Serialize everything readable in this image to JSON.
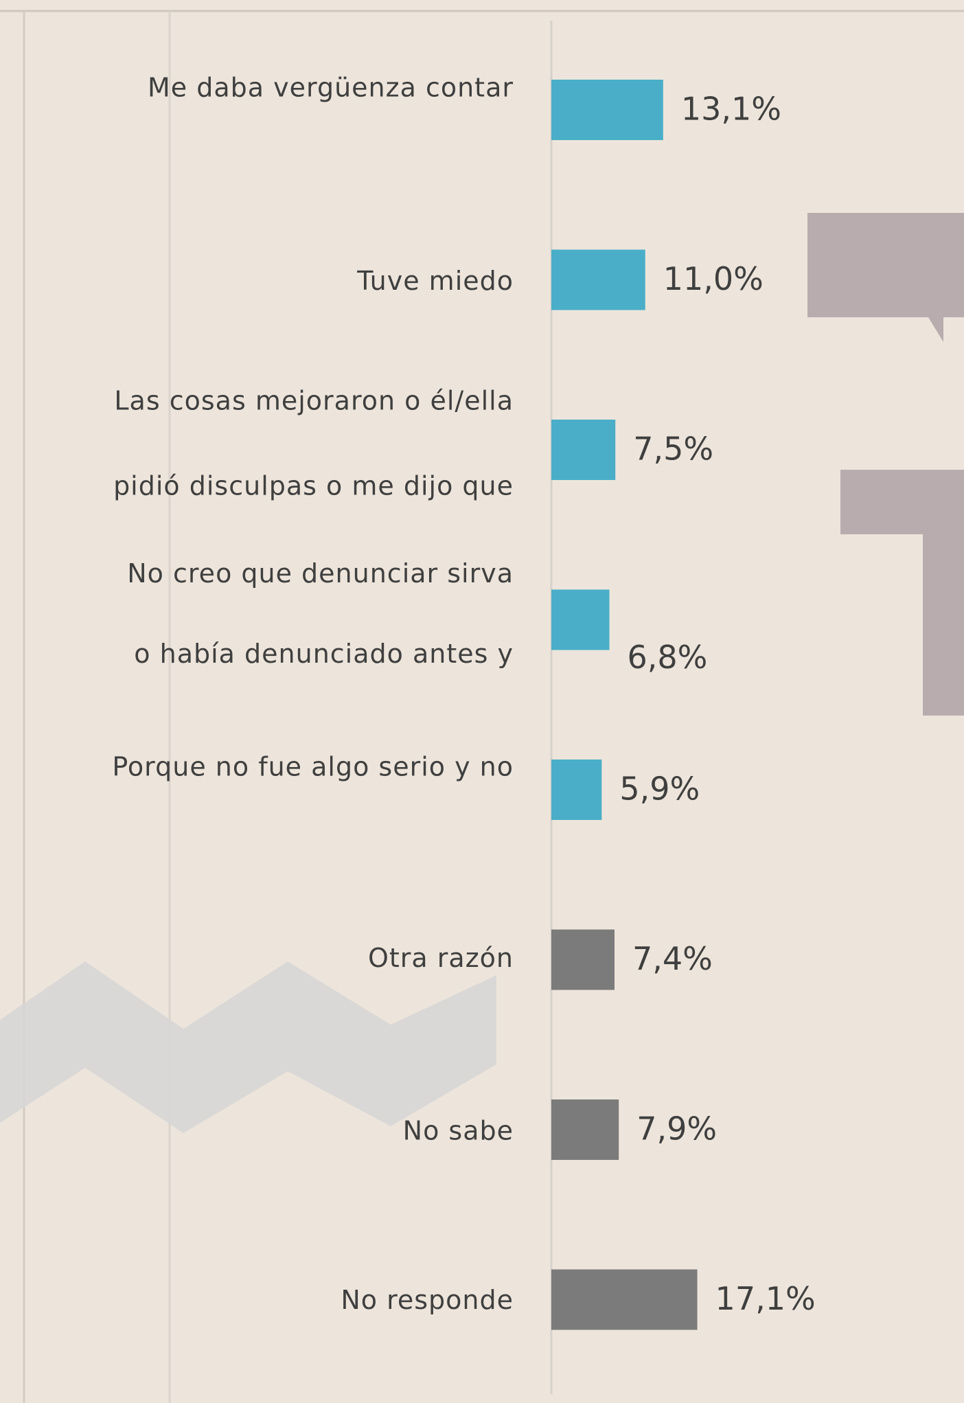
{
  "chart_data": {
    "type": "bar",
    "orientation": "horizontal",
    "categories": [
      [
        "Me daba vergüenza contar"
      ],
      [
        "Tuve miedo"
      ],
      [
        "Las cosas mejoraron o él/ella",
        "pidió disculpas o me dijo que"
      ],
      [
        "No creo que denunciar sirva",
        "o había denunciado antes y"
      ],
      [
        "Porque no fue algo serio y no"
      ],
      [
        "Otra razón"
      ],
      [
        "No sabe"
      ],
      [
        "No responde"
      ]
    ],
    "values": [
      13.1,
      11.0,
      7.5,
      6.8,
      5.9,
      7.4,
      7.9,
      17.1
    ],
    "value_labels": [
      "13,1%",
      "11,0%",
      "7,5%",
      "6,8%",
      "5,9%",
      "7,4%",
      "7,9%",
      "17,1%"
    ],
    "colors": [
      "#4aaec8",
      "#4aaec8",
      "#4aaec8",
      "#4aaec8",
      "#4aaec8",
      "#7b7b7b",
      "#7b7b7b",
      "#7b7b7b"
    ]
  }
}
